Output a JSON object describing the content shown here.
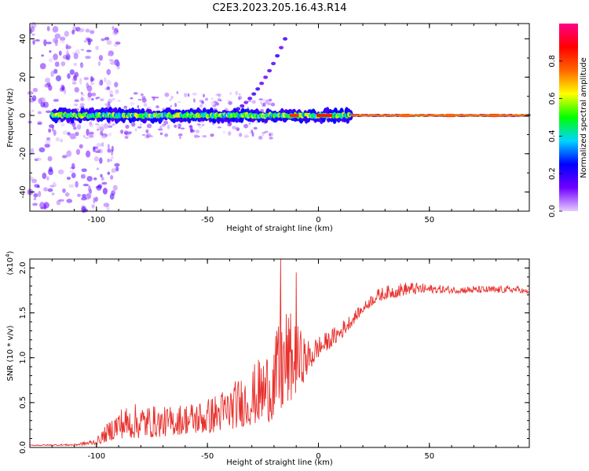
{
  "title": "C2E3.2023.205.16.43.R14",
  "chart_data": [
    {
      "type": "heatmap",
      "xlabel": "Height of straight line (km)",
      "ylabel": "Frequency (Hz)",
      "xlim": [
        -130,
        95
      ],
      "ylim": [
        -50,
        48
      ],
      "xticks": [
        -100,
        -50,
        0,
        50
      ],
      "yticks": [
        -40,
        -20,
        0,
        20,
        40
      ],
      "colorbar": {
        "label": "Normalized spectral amplitude",
        "range": [
          0.0,
          1.0
        ],
        "ticks": [
          "0.0",
          "0.2",
          "0.4",
          "0.6",
          "0.8"
        ],
        "tick_values": [
          0.0,
          0.2,
          0.4,
          0.6,
          0.8
        ],
        "colors": [
          "#e6ccff",
          "#7000ff",
          "#0000ff",
          "#00d5ff",
          "#00ff00",
          "#ffff00",
          "#ff6600",
          "#ff0000",
          "#ff0088"
        ]
      },
      "band": {
        "center_hz": 0,
        "segments": [
          {
            "x": [
              -120,
              -100
            ],
            "amplitude": 0.35
          },
          {
            "x": [
              -100,
              -20
            ],
            "amplitude": 0.45
          },
          {
            "x": [
              -20,
              15
            ],
            "amplitude": 0.55
          },
          {
            "x": [
              15,
              95
            ],
            "amplitude": 0.75
          }
        ]
      },
      "branch": {
        "x": [
          -45,
          -15
        ],
        "y": [
          0,
          40
        ]
      }
    },
    {
      "type": "line",
      "xlabel": "Height of straight line (km)",
      "ylabel": "SNR (10 * v/v)",
      "y_multiplier": "(x10⁴)",
      "y_multiplier_base": "(x10",
      "y_multiplier_exp": "4",
      "y_multiplier_close": ")",
      "xlim": [
        -130,
        95
      ],
      "ylim": [
        0,
        2.1
      ],
      "xticks": [
        -100,
        -50,
        0,
        50
      ],
      "yticks": [
        "0.0",
        "0.5",
        "1.0",
        "1.5",
        "2.0"
      ],
      "ytick_values": [
        0.0,
        0.5,
        1.0,
        1.5,
        2.0
      ],
      "color": "#e8312d",
      "envelope": {
        "x": [
          -130,
          -110,
          -100,
          -90,
          -80,
          -70,
          -60,
          -50,
          -40,
          -30,
          -20,
          -15,
          -10,
          -5,
          0,
          5,
          10,
          15,
          20,
          25,
          30,
          40,
          50,
          60,
          70,
          80,
          90,
          95
        ],
        "base": [
          0.02,
          0.02,
          0.03,
          0.1,
          0.1,
          0.12,
          0.15,
          0.15,
          0.2,
          0.25,
          0.3,
          0.4,
          0.6,
          0.8,
          1.0,
          1.1,
          1.2,
          1.35,
          1.5,
          1.6,
          1.65,
          1.7,
          1.72,
          1.72,
          1.72,
          1.72,
          1.73,
          1.7
        ],
        "peak": [
          0.03,
          0.04,
          0.1,
          0.45,
          0.5,
          0.45,
          0.5,
          0.55,
          0.7,
          0.9,
          1.2,
          1.6,
          1.4,
          1.2,
          1.25,
          1.3,
          1.4,
          1.5,
          1.6,
          1.75,
          1.8,
          1.85,
          1.82,
          1.8,
          1.8,
          1.8,
          1.8,
          1.75
        ]
      },
      "spikes": [
        {
          "x": -17,
          "y": 2.1
        },
        {
          "x": -10,
          "y": 1.95
        },
        {
          "x": -18,
          "y": 1.35
        }
      ]
    }
  ]
}
